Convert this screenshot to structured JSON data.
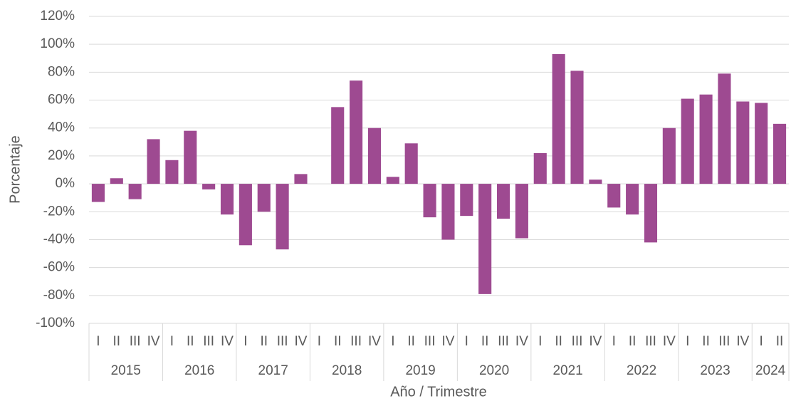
{
  "chart_data": {
    "type": "bar",
    "y_label": "Porcentaje",
    "x_label": "Año / Trimestre",
    "color": "#9e4a91",
    "grid": true,
    "groups": [
      {
        "label": "2015",
        "quarters": [
          "I",
          "II",
          "III",
          "IV"
        ]
      },
      {
        "label": "2016",
        "quarters": [
          "I",
          "II",
          "III",
          "IV"
        ]
      },
      {
        "label": "2017",
        "quarters": [
          "I",
          "II",
          "III",
          "IV"
        ]
      },
      {
        "label": "2018",
        "quarters": [
          "I",
          "II",
          "III",
          "IV"
        ]
      },
      {
        "label": "2019",
        "quarters": [
          "I",
          "II",
          "III",
          "IV"
        ]
      },
      {
        "label": "2020",
        "quarters": [
          "I",
          "II",
          "III",
          "IV"
        ]
      },
      {
        "label": "2021",
        "quarters": [
          "I",
          "II",
          "III",
          "IV"
        ]
      },
      {
        "label": "2022",
        "quarters": [
          "I",
          "II",
          "III",
          "IV"
        ]
      },
      {
        "label": "2023",
        "quarters": [
          "I",
          "II",
          "III",
          "IV"
        ]
      },
      {
        "label": "2024",
        "quarters": [
          "I",
          "II"
        ]
      }
    ],
    "values": [
      -13,
      4,
      -11,
      32,
      17,
      38,
      -4,
      -22,
      -44,
      -20,
      -47,
      7,
      0,
      55,
      74,
      40,
      5,
      29,
      -24,
      -40,
      -23,
      -79,
      -25,
      -39,
      22,
      93,
      81,
      3,
      -17,
      -22,
      -42,
      40,
      61,
      64,
      79,
      59,
      58,
      43
    ],
    "ylim": [
      -100,
      120
    ],
    "yticks": [
      {
        "value": -100,
        "label": "-100%"
      },
      {
        "value": -80,
        "label": "-80%"
      },
      {
        "value": -60,
        "label": "-60%"
      },
      {
        "value": -40,
        "label": "-40%"
      },
      {
        "value": -20,
        "label": "-20%"
      },
      {
        "value": 0,
        "label": "0%"
      },
      {
        "value": 20,
        "label": "20%"
      },
      {
        "value": 40,
        "label": "40%"
      },
      {
        "value": 60,
        "label": "60%"
      },
      {
        "value": 80,
        "label": "80%"
      },
      {
        "value": 100,
        "label": "100%"
      },
      {
        "value": 120,
        "label": "120%"
      }
    ]
  }
}
